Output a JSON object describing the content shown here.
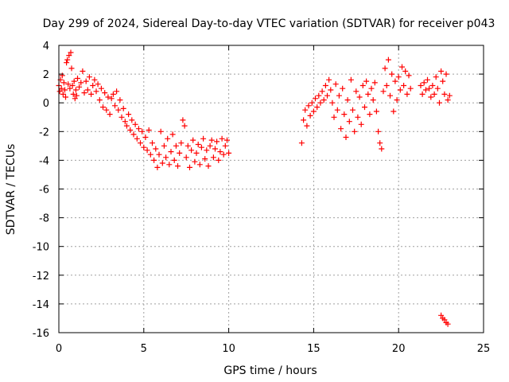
{
  "chart_data": {
    "type": "scatter",
    "title": "Day 299 of 2024, Sidereal Day-to-day VTEC variation (SDTVAR) for receiver p043",
    "xlabel": "GPS time / hours",
    "ylabel": "SDTVAR / TECUs",
    "xlim": [
      0,
      25
    ],
    "ylim": [
      -16,
      4
    ],
    "xticks": [
      0,
      5,
      10,
      15,
      20,
      25
    ],
    "xtick_labels": [
      "0",
      "5",
      "10",
      "15",
      "20",
      "25"
    ],
    "yticks": [
      4,
      2,
      0,
      -2,
      -4,
      -6,
      -8,
      -10,
      -12,
      -14,
      -16
    ],
    "ytick_labels": [
      "4",
      "2",
      "0",
      "-2",
      "-4",
      "-6",
      "-8",
      "-10",
      "-12",
      "-14",
      "-16"
    ],
    "grid": true,
    "marker": "plus",
    "series": [
      {
        "name": "SDTVAR",
        "color": "#ff0000",
        "points": [
          [
            0.0,
            1.2
          ],
          [
            0.05,
            0.8
          ],
          [
            0.1,
            1.6
          ],
          [
            0.15,
            1.0
          ],
          [
            0.2,
            1.9
          ],
          [
            0.25,
            0.6
          ],
          [
            0.3,
            1.4
          ],
          [
            0.35,
            0.9
          ],
          [
            0.4,
            0.4
          ],
          [
            0.45,
            2.8
          ],
          [
            0.5,
            3.0
          ],
          [
            0.55,
            1.3
          ],
          [
            0.6,
            3.3
          ],
          [
            0.65,
            1.0
          ],
          [
            0.7,
            3.5
          ],
          [
            0.75,
            2.4
          ],
          [
            0.8,
            1.2
          ],
          [
            0.85,
            0.6
          ],
          [
            0.9,
            1.5
          ],
          [
            0.95,
            0.3
          ],
          [
            1.0,
            0.9
          ],
          [
            1.05,
            0.5
          ],
          [
            1.1,
            1.7
          ],
          [
            1.2,
            1.1
          ],
          [
            1.3,
            1.4
          ],
          [
            1.4,
            2.2
          ],
          [
            1.5,
            0.7
          ],
          [
            1.6,
            1.5
          ],
          [
            1.7,
            0.9
          ],
          [
            1.8,
            1.8
          ],
          [
            1.9,
            0.6
          ],
          [
            2.0,
            1.2
          ],
          [
            2.1,
            1.6
          ],
          [
            2.2,
            0.8
          ],
          [
            2.3,
            1.3
          ],
          [
            2.4,
            0.2
          ],
          [
            2.5,
            1.0
          ],
          [
            2.6,
            -0.3
          ],
          [
            2.7,
            0.7
          ],
          [
            2.8,
            -0.5
          ],
          [
            2.9,
            0.4
          ],
          [
            3.0,
            -0.8
          ],
          [
            3.1,
            0.3
          ],
          [
            3.2,
            0.6
          ],
          [
            3.3,
            -0.2
          ],
          [
            3.4,
            0.8
          ],
          [
            3.5,
            -0.5
          ],
          [
            3.6,
            0.2
          ],
          [
            3.7,
            -1.0
          ],
          [
            3.8,
            -0.4
          ],
          [
            3.9,
            -1.3
          ],
          [
            4.0,
            -1.6
          ],
          [
            4.1,
            -0.8
          ],
          [
            4.2,
            -1.9
          ],
          [
            4.3,
            -1.2
          ],
          [
            4.4,
            -2.2
          ],
          [
            4.5,
            -1.5
          ],
          [
            4.6,
            -2.5
          ],
          [
            4.7,
            -1.8
          ],
          [
            4.8,
            -2.8
          ],
          [
            4.9,
            -2.0
          ],
          [
            5.0,
            -3.1
          ],
          [
            5.1,
            -2.4
          ],
          [
            5.2,
            -3.3
          ],
          [
            5.3,
            -1.9
          ],
          [
            5.4,
            -3.6
          ],
          [
            5.5,
            -2.8
          ],
          [
            5.6,
            -4.0
          ],
          [
            5.7,
            -3.2
          ],
          [
            5.8,
            -4.5
          ],
          [
            5.9,
            -3.6
          ],
          [
            6.0,
            -2.0
          ],
          [
            6.1,
            -4.2
          ],
          [
            6.2,
            -3.0
          ],
          [
            6.3,
            -3.8
          ],
          [
            6.4,
            -2.5
          ],
          [
            6.5,
            -4.3
          ],
          [
            6.6,
            -3.4
          ],
          [
            6.7,
            -2.2
          ],
          [
            6.8,
            -4.0
          ],
          [
            6.9,
            -3.0
          ],
          [
            7.0,
            -4.4
          ],
          [
            7.1,
            -3.5
          ],
          [
            7.2,
            -2.8
          ],
          [
            7.3,
            -1.2
          ],
          [
            7.4,
            -1.6
          ],
          [
            7.5,
            -3.8
          ],
          [
            7.6,
            -3.0
          ],
          [
            7.7,
            -4.5
          ],
          [
            7.8,
            -3.3
          ],
          [
            7.9,
            -2.6
          ],
          [
            8.0,
            -4.1
          ],
          [
            8.1,
            -3.5
          ],
          [
            8.2,
            -2.9
          ],
          [
            8.3,
            -4.3
          ],
          [
            8.4,
            -3.1
          ],
          [
            8.5,
            -2.5
          ],
          [
            8.6,
            -3.9
          ],
          [
            8.7,
            -3.3
          ],
          [
            8.8,
            -4.4
          ],
          [
            8.9,
            -3.0
          ],
          [
            9.0,
            -2.6
          ],
          [
            9.1,
            -3.8
          ],
          [
            9.2,
            -3.2
          ],
          [
            9.3,
            -2.7
          ],
          [
            9.4,
            -4.0
          ],
          [
            9.5,
            -3.4
          ],
          [
            9.6,
            -2.5
          ],
          [
            9.7,
            -3.6
          ],
          [
            9.8,
            -3.0
          ],
          [
            9.9,
            -2.6
          ],
          [
            10.0,
            -3.5
          ],
          [
            14.3,
            -2.8
          ],
          [
            14.4,
            -1.2
          ],
          [
            14.5,
            -0.5
          ],
          [
            14.6,
            -1.6
          ],
          [
            14.7,
            -0.2
          ],
          [
            14.8,
            -0.9
          ],
          [
            14.9,
            0.0
          ],
          [
            15.0,
            -0.6
          ],
          [
            15.1,
            0.3
          ],
          [
            15.2,
            -0.3
          ],
          [
            15.3,
            0.5
          ],
          [
            15.4,
            0.0
          ],
          [
            15.5,
            0.8
          ],
          [
            15.6,
            0.2
          ],
          [
            15.7,
            1.2
          ],
          [
            15.8,
            0.5
          ],
          [
            15.9,
            1.6
          ],
          [
            16.0,
            0.9
          ],
          [
            16.1,
            0.0
          ],
          [
            16.2,
            -1.0
          ],
          [
            16.3,
            1.3
          ],
          [
            16.4,
            -0.5
          ],
          [
            16.5,
            0.5
          ],
          [
            16.6,
            -1.8
          ],
          [
            16.7,
            1.0
          ],
          [
            16.8,
            -0.8
          ],
          [
            16.9,
            -2.4
          ],
          [
            17.0,
            0.2
          ],
          [
            17.1,
            -1.3
          ],
          [
            17.2,
            1.6
          ],
          [
            17.3,
            -0.5
          ],
          [
            17.4,
            -2.0
          ],
          [
            17.5,
            0.8
          ],
          [
            17.6,
            -1.0
          ],
          [
            17.7,
            0.4
          ],
          [
            17.8,
            -1.5
          ],
          [
            17.9,
            1.2
          ],
          [
            18.0,
            -0.3
          ],
          [
            18.1,
            1.5
          ],
          [
            18.2,
            0.6
          ],
          [
            18.3,
            -0.8
          ],
          [
            18.4,
            1.0
          ],
          [
            18.5,
            0.2
          ],
          [
            18.6,
            1.4
          ],
          [
            18.7,
            -0.6
          ],
          [
            18.8,
            -2.0
          ],
          [
            18.9,
            -2.8
          ],
          [
            19.0,
            -3.2
          ],
          [
            19.1,
            0.8
          ],
          [
            19.2,
            2.4
          ],
          [
            19.3,
            1.2
          ],
          [
            19.4,
            3.0
          ],
          [
            19.5,
            0.5
          ],
          [
            19.6,
            2.0
          ],
          [
            19.7,
            -0.6
          ],
          [
            19.8,
            1.5
          ],
          [
            19.9,
            0.2
          ],
          [
            20.0,
            1.8
          ],
          [
            20.1,
            0.9
          ],
          [
            20.2,
            2.5
          ],
          [
            20.3,
            1.2
          ],
          [
            20.4,
            2.2
          ],
          [
            20.5,
            0.6
          ],
          [
            20.6,
            1.9
          ],
          [
            20.7,
            1.0
          ],
          [
            21.3,
            1.2
          ],
          [
            21.4,
            0.6
          ],
          [
            21.5,
            1.4
          ],
          [
            21.6,
            0.9
          ],
          [
            21.7,
            1.6
          ],
          [
            21.8,
            1.0
          ],
          [
            21.9,
            0.4
          ],
          [
            22.0,
            1.2
          ],
          [
            22.1,
            0.6
          ],
          [
            22.2,
            1.8
          ],
          [
            22.3,
            1.0
          ],
          [
            22.4,
            0.0
          ],
          [
            22.5,
            2.2
          ],
          [
            22.6,
            1.5
          ],
          [
            22.7,
            0.6
          ],
          [
            22.8,
            2.0
          ],
          [
            22.9,
            0.2
          ],
          [
            23.0,
            0.5
          ],
          [
            22.5,
            -14.8
          ],
          [
            22.6,
            -15.0
          ],
          [
            22.7,
            -15.1
          ],
          [
            22.8,
            -15.3
          ],
          [
            22.9,
            -15.4
          ]
        ]
      }
    ]
  }
}
